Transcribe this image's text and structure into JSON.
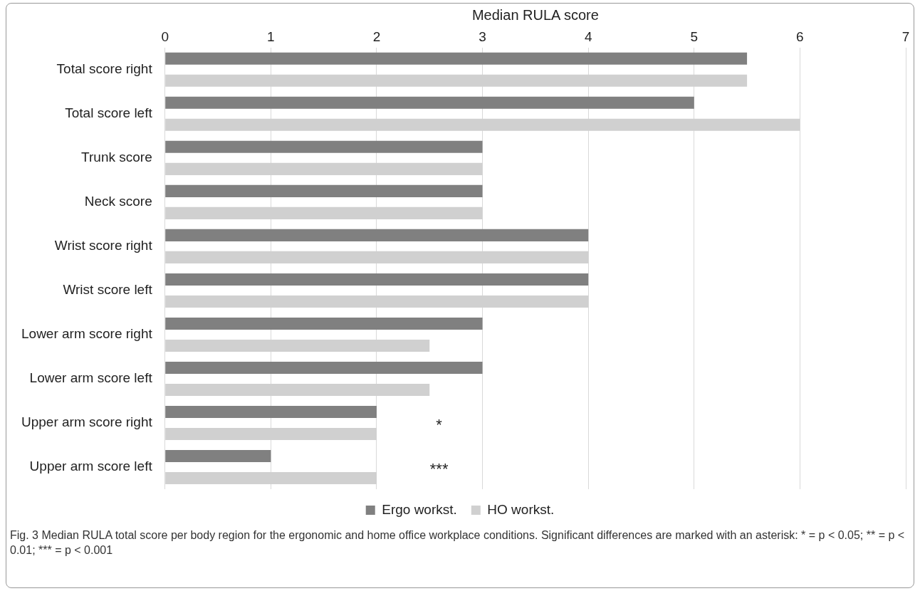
{
  "chart_data": {
    "type": "bar",
    "orientation": "horizontal",
    "xlabel": "Median RULA score",
    "categories": [
      "Total score right",
      "Total score left",
      "Trunk score",
      "Neck score",
      "Wrist score right",
      "Wrist score left",
      "Lower arm score right",
      "Lower arm score left",
      "Upper arm score right",
      "Upper arm score left"
    ],
    "series": [
      {
        "name": "Ergo workst.",
        "color": "#808080",
        "values": [
          5.5,
          5,
          3,
          3,
          4,
          4,
          3,
          3,
          2,
          1
        ]
      },
      {
        "name": "HO workst.",
        "color": "#d0d0d0",
        "values": [
          5.5,
          6,
          3,
          3,
          4,
          4,
          2.5,
          2.5,
          2,
          2
        ]
      }
    ],
    "xlim": [
      0,
      7
    ],
    "xticks": [
      0,
      1,
      2,
      3,
      4,
      5,
      6,
      7
    ],
    "grid": "x",
    "legend": "bottom",
    "annotations": [
      "*",
      "***",
      "Fig. 3  Median RULA total score per body region for the ergonomic and home office workplace conditions. Significant differences are marked with an asterisk: * = p < 0.05; ** = p < 0.01; *** = p < 0.001"
    ]
  }
}
